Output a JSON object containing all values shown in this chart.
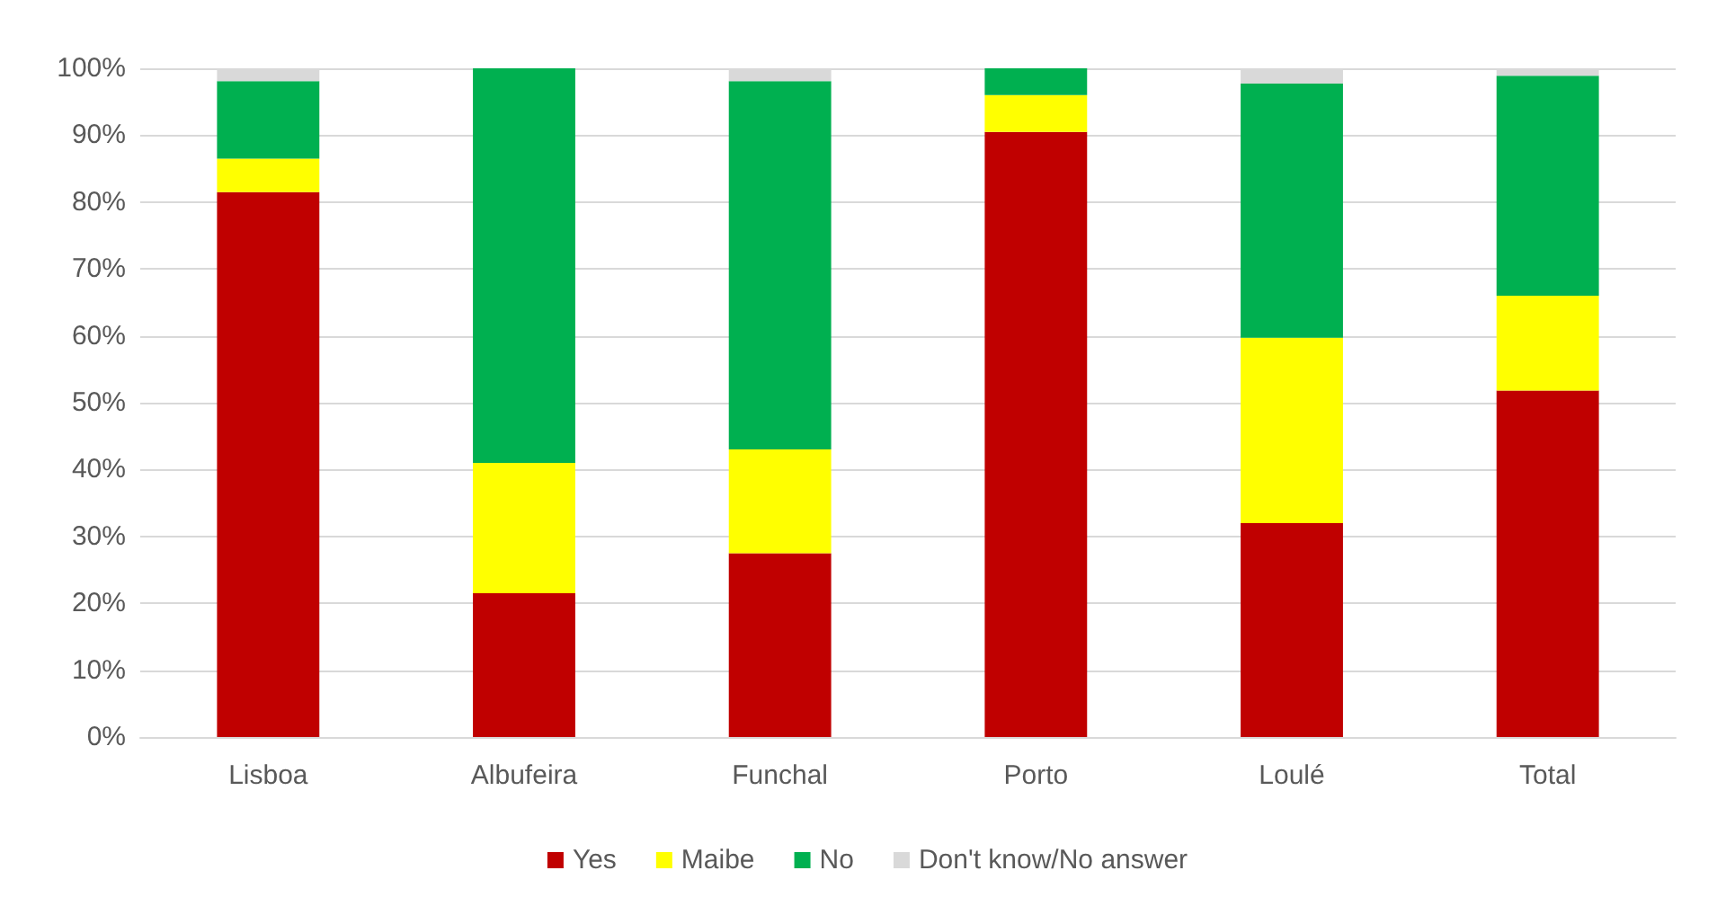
{
  "chart_data": {
    "type": "bar",
    "stacked": true,
    "categories": [
      "Lisboa",
      "Albufeira",
      "Funchal",
      "Porto",
      "Loulé",
      "Total"
    ],
    "series": [
      {
        "name": "Yes",
        "color": "#c00000",
        "values": [
          81.5,
          21.5,
          27.5,
          90.5,
          32,
          51.8
        ]
      },
      {
        "name": "Maibe",
        "color": "#ffff00",
        "values": [
          5,
          19.5,
          15.5,
          5.5,
          27.7,
          14.2
        ]
      },
      {
        "name": "No",
        "color": "#00b050",
        "values": [
          11.6,
          59,
          55.1,
          4,
          38,
          32.9
        ]
      },
      {
        "name": "Don't know/No answer",
        "color": "#d9d9d9",
        "values": [
          1.9,
          0,
          1.9,
          0,
          2.3,
          1.1
        ]
      }
    ],
    "ylim": [
      0,
      100
    ],
    "yticks": [
      {
        "value": 0,
        "label": "0%"
      },
      {
        "value": 10,
        "label": "10%"
      },
      {
        "value": 20,
        "label": "20%"
      },
      {
        "value": 30,
        "label": "30%"
      },
      {
        "value": 40,
        "label": "40%"
      },
      {
        "value": 50,
        "label": "50%"
      },
      {
        "value": 60,
        "label": "60%"
      },
      {
        "value": 70,
        "label": "70%"
      },
      {
        "value": 80,
        "label": "80%"
      },
      {
        "value": 90,
        "label": "90%"
      },
      {
        "value": 100,
        "label": "100%"
      }
    ],
    "grid": "y",
    "legend": "bottom"
  }
}
